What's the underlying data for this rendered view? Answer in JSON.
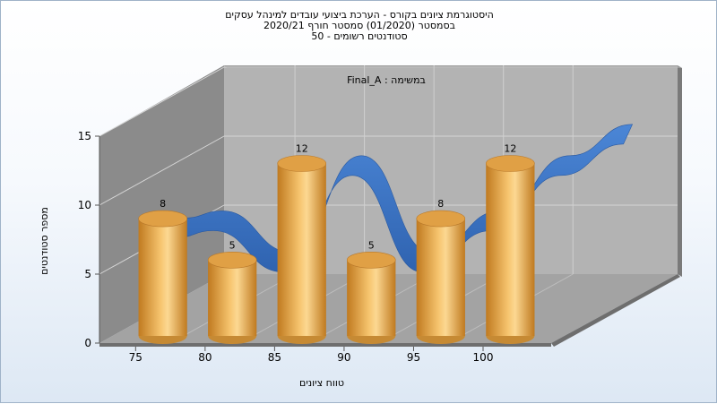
{
  "chart": {
    "title_lines": [
      "היסטוגרמת ציונים בקורס - הערכת ביצועי עובדים למינהל עסקים",
      "בסמסטר  (01/2020)  סמסטר חורף  2020/21",
      "סטודנטים רשומים - 50"
    ],
    "annotation": "Final_A : במשימה"
  },
  "chart_data": {
    "type": "bar",
    "categories": [
      "75",
      "80",
      "85",
      "90",
      "95",
      "100"
    ],
    "values": [
      8,
      5,
      12,
      5,
      8,
      12
    ],
    "x_ticks": [
      "75",
      "80",
      "85",
      "90",
      "95",
      "100"
    ],
    "y_ticks": [
      "0",
      "5",
      "10",
      "15"
    ],
    "ylim": [
      0,
      15
    ],
    "xlabel": "טווח ציונים",
    "ylabel": "מספר סטודנטים",
    "grid": true,
    "colors": {
      "bar": "#f0b460",
      "bar_dark": "#c88020",
      "ribbon": "#3b76c8",
      "back_wall": "#b2b2b2",
      "side_wall": "#8a8a8a",
      "floor": "#a2a2a2"
    }
  }
}
